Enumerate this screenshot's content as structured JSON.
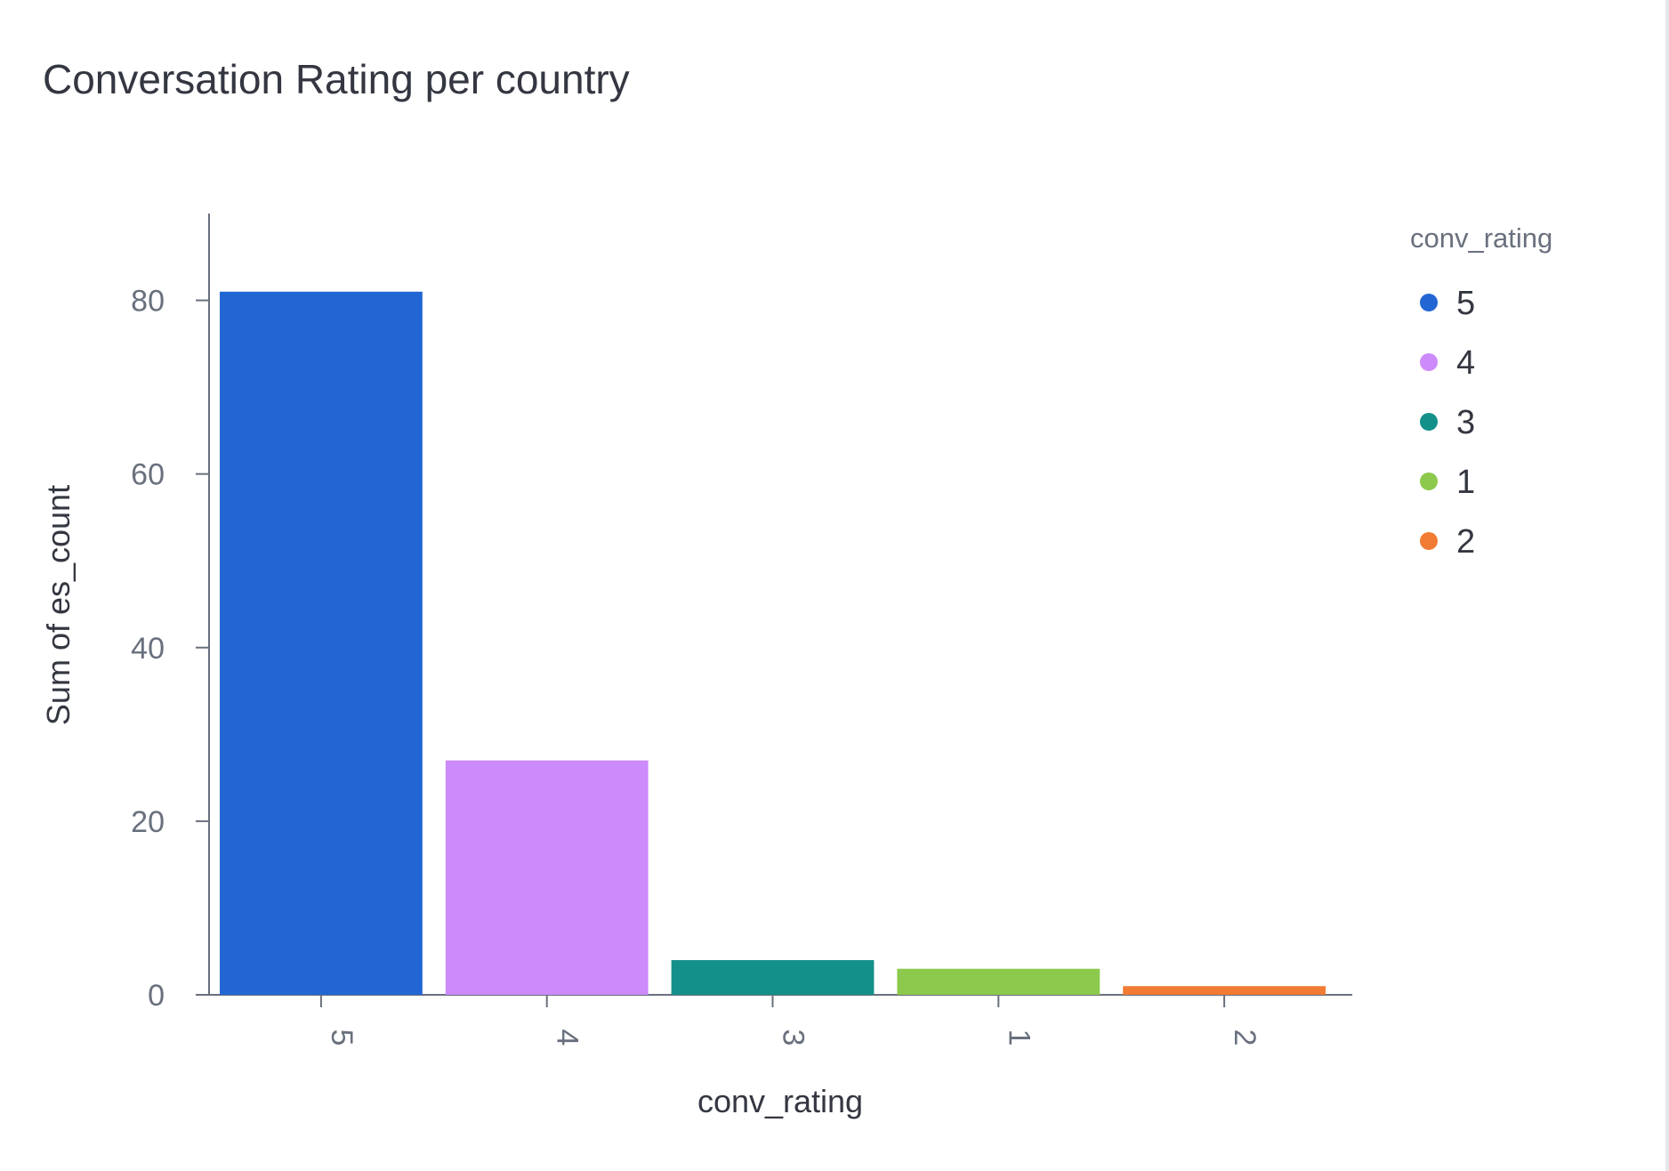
{
  "chart_data": {
    "type": "bar",
    "title": "Conversation Rating per country",
    "xlabel": "conv_rating",
    "ylabel": "Sum of es_count",
    "categories": [
      "5",
      "4",
      "3",
      "1",
      "2"
    ],
    "values": [
      81,
      27,
      4,
      3,
      1
    ],
    "colors": [
      "#2266d3",
      "#cc8afa",
      "#14908a",
      "#8cc94c",
      "#f27b33"
    ],
    "ylim": [
      0,
      90
    ],
    "yticks": [
      0,
      20,
      40,
      60,
      80
    ],
    "grid": false,
    "legend": {
      "title": "conv_rating",
      "placement": "top-right",
      "entries": [
        {
          "label": "5",
          "color": "#2266d3"
        },
        {
          "label": "4",
          "color": "#cc8afa"
        },
        {
          "label": "3",
          "color": "#14908a"
        },
        {
          "label": "1",
          "color": "#8cc94c"
        },
        {
          "label": "2",
          "color": "#f27b33"
        }
      ]
    }
  }
}
